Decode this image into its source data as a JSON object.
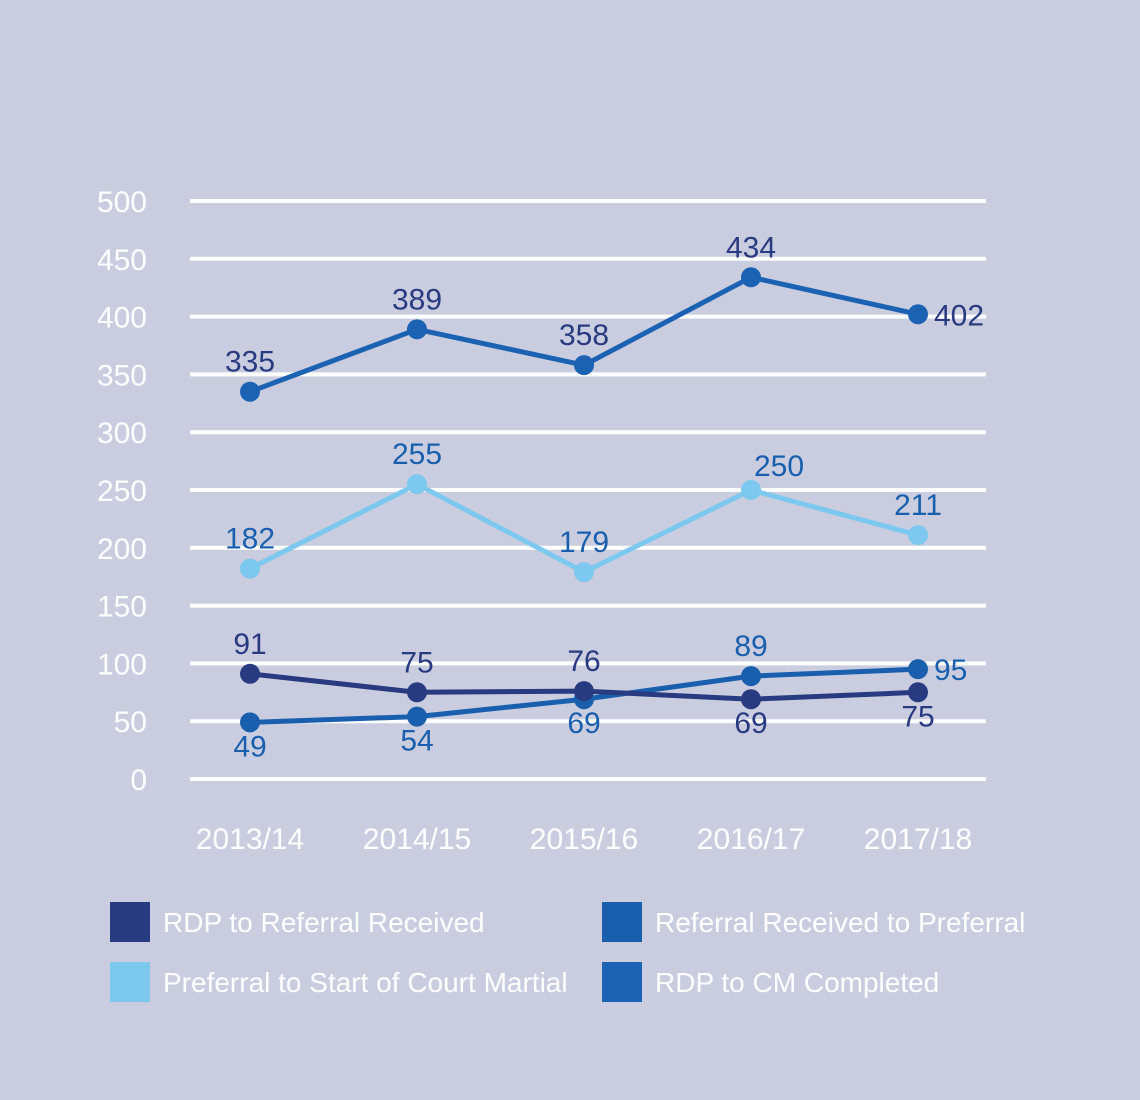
{
  "chart_data": {
    "type": "line",
    "categories": [
      "2013/14",
      "2014/15",
      "2015/16",
      "2016/17",
      "2017/18"
    ],
    "ylim": [
      0,
      500
    ],
    "yticks": [
      0,
      50,
      100,
      150,
      200,
      250,
      300,
      350,
      400,
      450,
      500
    ],
    "grid": true,
    "legend_position": "bottom",
    "series": [
      {
        "name": "RDP to Referral Received",
        "values": [
          91,
          75,
          76,
          69,
          75
        ],
        "color": "#283a80",
        "label_color": "#283a80",
        "label_positions": [
          "above",
          "above",
          "above",
          "below",
          "below"
        ]
      },
      {
        "name": "Referral Received to Preferral",
        "values": [
          49,
          54,
          69,
          89,
          95
        ],
        "color": "#1a5fad",
        "label_color": "#1a5fad",
        "label_positions": [
          "below",
          "below",
          "below",
          "above",
          "right"
        ]
      },
      {
        "name": "Preferral to Start of Court Martial",
        "values": [
          182,
          255,
          179,
          250,
          211
        ],
        "color": "#7dc8ef",
        "label_color": "#1a5fad",
        "label_positions": [
          "above",
          "above",
          "above",
          "above-right",
          "above"
        ]
      },
      {
        "name": "RDP to CM Completed",
        "values": [
          335,
          389,
          358,
          434,
          402
        ],
        "color": "#1c62b3",
        "label_color": "#283a80",
        "label_positions": [
          "above",
          "above",
          "above",
          "above",
          "right"
        ]
      }
    ]
  }
}
